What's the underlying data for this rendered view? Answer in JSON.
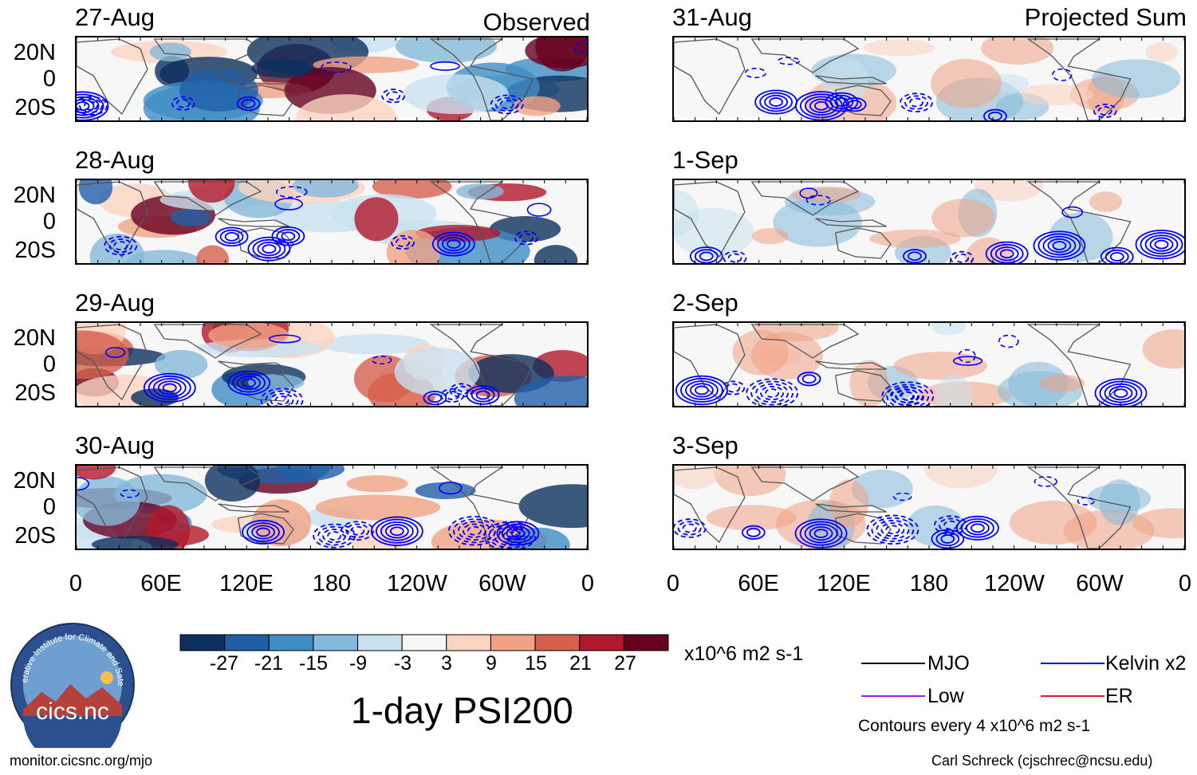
{
  "columns": {
    "left": {
      "title": "Observed"
    },
    "right": {
      "title": "Projected Sum"
    }
  },
  "panels": {
    "left": [
      {
        "date": "27-Aug",
        "seed": 3
      },
      {
        "date": "28-Aug",
        "seed": 7
      },
      {
        "date": "29-Aug",
        "seed": 11
      },
      {
        "date": "30-Aug",
        "seed": 17
      }
    ],
    "right": [
      {
        "date": "31-Aug",
        "seed": 23
      },
      {
        "date": "1-Sep",
        "seed": 29
      },
      {
        "date": "2-Sep",
        "seed": 31
      },
      {
        "date": "3-Sep",
        "seed": 37
      }
    ]
  },
  "lat_labels": [
    "20N",
    "0",
    "20S"
  ],
  "lon_labels": [
    "0",
    "60E",
    "120E",
    "180",
    "120W",
    "60W",
    "0"
  ],
  "colorbar": {
    "colors": [
      "#0b2f5e",
      "#1f5fa8",
      "#3f8dc4",
      "#84b9da",
      "#c9e1ef",
      "#f7f7f7",
      "#fbd3c1",
      "#f1a285",
      "#d6604d",
      "#b2182b",
      "#67001f"
    ],
    "tick_labels": [
      "-27",
      "-21",
      "-15",
      "-9",
      "-3",
      "3",
      "9",
      "15",
      "21",
      "27"
    ],
    "units": "x10^6 m2 s-1"
  },
  "main_title": "1-day PSI200",
  "legend": {
    "items": [
      {
        "label": "MJO",
        "color": "#000000"
      },
      {
        "label": "Kelvin x2",
        "color": "#0000ff"
      },
      {
        "label": "Low",
        "color": "#a020f0"
      },
      {
        "label": "ER",
        "color": "#e31a1c"
      }
    ],
    "contour_note": "Contours every 4 x10^6 m2 s-1"
  },
  "logo": {
    "ring_text": "Cooperative Institute for Climate and Satellites",
    "name": "cics.nc"
  },
  "footer": {
    "url": "monitor.cicsnc.org/mjo",
    "credit": "Carl Schreck (cjschrec@ncsu.edu)"
  }
}
